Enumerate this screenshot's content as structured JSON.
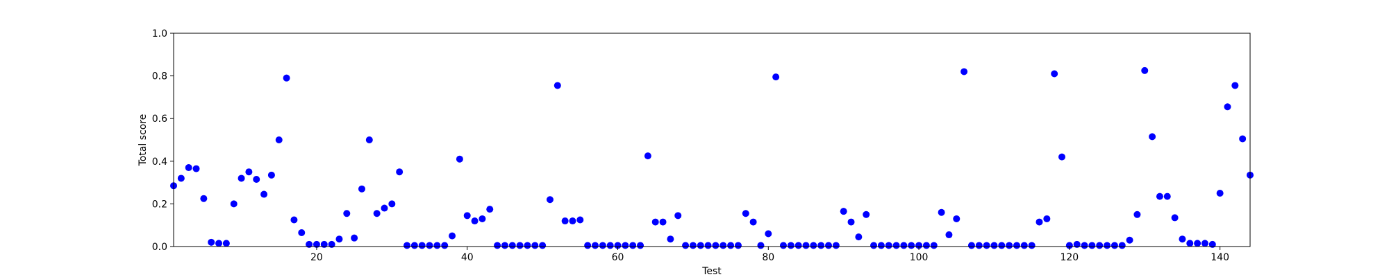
{
  "chart_data": {
    "type": "scatter",
    "title": "",
    "xlabel": "Test",
    "ylabel": "Total score",
    "xlim": [
      1,
      144
    ],
    "ylim": [
      0,
      1.0
    ],
    "xticks": [
      20,
      40,
      60,
      80,
      100,
      120,
      140
    ],
    "yticks": [
      0.0,
      0.2,
      0.4,
      0.6,
      0.8,
      1.0
    ],
    "ytick_labels": [
      "0.0",
      "0.2",
      "0.4",
      "0.6",
      "0.8",
      "1.0"
    ],
    "grid": false,
    "marker_color": "#0000ff",
    "x": [
      1,
      2,
      3,
      4,
      5,
      6,
      7,
      8,
      9,
      10,
      11,
      12,
      13,
      14,
      15,
      16,
      17,
      18,
      19,
      20,
      21,
      22,
      23,
      24,
      25,
      26,
      27,
      28,
      29,
      30,
      31,
      32,
      33,
      34,
      35,
      36,
      37,
      38,
      39,
      40,
      41,
      42,
      43,
      44,
      45,
      46,
      47,
      48,
      49,
      50,
      51,
      52,
      53,
      54,
      55,
      56,
      57,
      58,
      59,
      60,
      61,
      62,
      63,
      64,
      65,
      66,
      67,
      68,
      69,
      70,
      71,
      72,
      73,
      74,
      75,
      76,
      77,
      78,
      79,
      80,
      81,
      82,
      83,
      84,
      85,
      86,
      87,
      88,
      89,
      90,
      91,
      92,
      93,
      94,
      95,
      96,
      97,
      98,
      99,
      100,
      101,
      102,
      103,
      104,
      105,
      106,
      107,
      108,
      109,
      110,
      111,
      112,
      113,
      114,
      115,
      116,
      117,
      118,
      119,
      120,
      121,
      122,
      123,
      124,
      125,
      126,
      127,
      128,
      129,
      130,
      131,
      132,
      133,
      134,
      135,
      136,
      137,
      138,
      139,
      140,
      141,
      142,
      143,
      144
    ],
    "y": [
      0.285,
      0.32,
      0.37,
      0.365,
      0.225,
      0.02,
      0.015,
      0.015,
      0.2,
      0.32,
      0.35,
      0.315,
      0.245,
      0.335,
      0.5,
      0.79,
      0.125,
      0.065,
      0.01,
      0.01,
      0.01,
      0.01,
      0.035,
      0.155,
      0.04,
      0.27,
      0.5,
      0.155,
      0.18,
      0.2,
      0.35,
      0.005,
      0.005,
      0.005,
      0.005,
      0.005,
      0.005,
      0.05,
      0.41,
      0.145,
      0.12,
      0.13,
      0.175,
      0.005,
      0.005,
      0.005,
      0.005,
      0.005,
      0.005,
      0.005,
      0.22,
      0.755,
      0.12,
      0.12,
      0.125,
      0.005,
      0.005,
      0.005,
      0.005,
      0.005,
      0.005,
      0.005,
      0.005,
      0.425,
      0.115,
      0.115,
      0.035,
      0.145,
      0.005,
      0.005,
      0.005,
      0.005,
      0.005,
      0.005,
      0.005,
      0.005,
      0.155,
      0.115,
      0.005,
      0.06,
      0.795,
      0.005,
      0.005,
      0.005,
      0.005,
      0.005,
      0.005,
      0.005,
      0.005,
      0.165,
      0.115,
      0.045,
      0.15,
      0.005,
      0.005,
      0.005,
      0.005,
      0.005,
      0.005,
      0.005,
      0.005,
      0.005,
      0.16,
      0.055,
      0.13,
      0.82,
      0.005,
      0.005,
      0.005,
      0.005,
      0.005,
      0.005,
      0.005,
      0.005,
      0.005,
      0.115,
      0.13,
      0.81,
      0.42,
      0.005,
      0.01,
      0.005,
      0.005,
      0.005,
      0.005,
      0.005,
      0.005,
      0.03,
      0.15,
      0.825,
      0.515,
      0.235,
      0.235,
      0.135,
      0.035,
      0.015,
      0.015,
      0.015,
      0.01,
      0.25,
      0.655,
      0.755,
      0.505,
      0.335
    ]
  }
}
